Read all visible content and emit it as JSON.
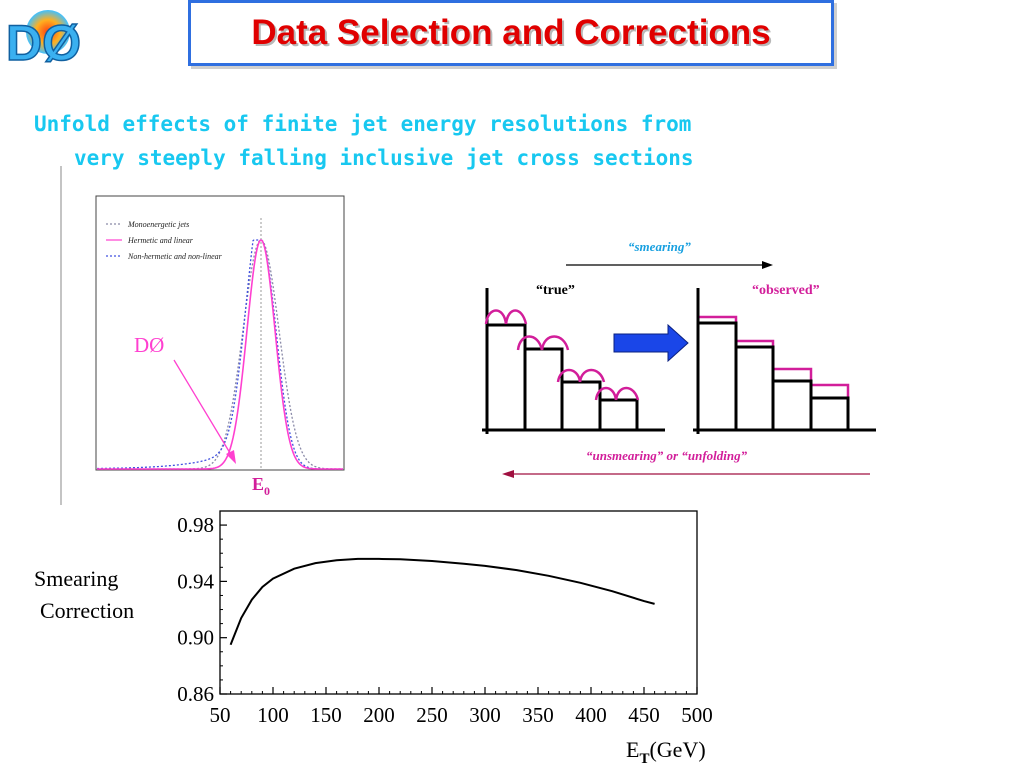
{
  "logo_text": "DØ",
  "title": "Data Selection and Corrections",
  "subtitle_line1": "Unfold effects of finite jet energy resolutions from",
  "subtitle_line2": "very steeply falling inclusive jet cross sections",
  "response_plot": {
    "legend": [
      "Monoenergetic jets",
      "Hermetic and linear",
      "Non-hermetic and non-linear"
    ],
    "dzero_label": "DØ",
    "e0_main": "E",
    "e0_sub": "0"
  },
  "smearing_diagram": {
    "smearing_label": "“smearing”",
    "true_label": "“true”",
    "observed_label": "“observed”",
    "unsmearing_label": "“unsmearing” or “unfolding”"
  },
  "chart_data": {
    "type": "line",
    "title": "",
    "ylabel_line1": "Smearing",
    "ylabel_line2": "Correction",
    "xlabel_main": "E",
    "xlabel_sub": "T",
    "xlabel_unit": "(GeV)",
    "xlim": [
      50,
      500
    ],
    "ylim": [
      0.86,
      0.99
    ],
    "x_ticks": [
      50,
      100,
      150,
      200,
      250,
      300,
      350,
      400,
      450,
      500
    ],
    "y_ticks": [
      0.86,
      0.9,
      0.94,
      0.98
    ],
    "y_tick_labels": [
      "0.86",
      "0.90",
      "0.94",
      "0.98"
    ],
    "series": [
      {
        "x": [
          60,
          70,
          80,
          90,
          100,
          120,
          140,
          160,
          180,
          200,
          220,
          250,
          280,
          300,
          330,
          360,
          390,
          420,
          450,
          460
        ],
        "y": [
          0.895,
          0.914,
          0.927,
          0.936,
          0.942,
          0.949,
          0.953,
          0.955,
          0.956,
          0.956,
          0.9557,
          0.9545,
          0.9525,
          0.951,
          0.948,
          0.944,
          0.939,
          0.933,
          0.926,
          0.924
        ]
      }
    ],
    "grid": false
  },
  "colors": {
    "title": "#e00000",
    "title_border": "#2f6fe0",
    "subtitle": "#18c8f0",
    "magenta": "#d21e9a",
    "blue_arrow": "#1a46e8",
    "mono_curve": "#8a8aa8",
    "hermetic_curve": "#ff40d0",
    "nonhermetic_curve": "#4050e0"
  }
}
